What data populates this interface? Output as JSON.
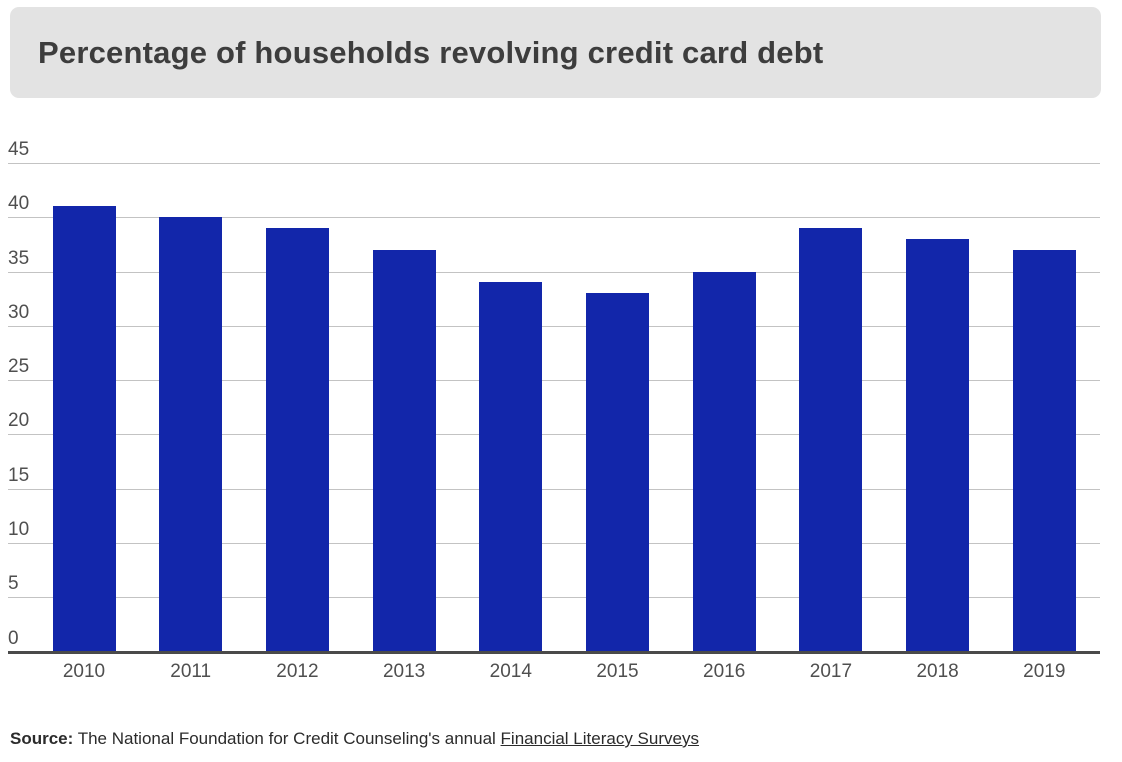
{
  "title": "Percentage of households revolving credit card debt",
  "chart_data": {
    "type": "bar",
    "categories": [
      "2010",
      "2011",
      "2012",
      "2013",
      "2014",
      "2015",
      "2016",
      "2017",
      "2018",
      "2019"
    ],
    "values": [
      41,
      40,
      39,
      37,
      34,
      33,
      35,
      39,
      38,
      37
    ],
    "title": "Percentage of households revolving credit card debt",
    "xlabel": "",
    "ylabel": "",
    "ylim": [
      0,
      45
    ],
    "ytick_step": 5,
    "ytick_labels": [
      "0",
      "5",
      "10",
      "15",
      "20",
      "25",
      "30",
      "35",
      "40",
      "45"
    ],
    "grid": true,
    "legend": "none",
    "bar_color": "#1226aa"
  },
  "source": {
    "label": "Source:",
    "text": " The National Foundation for Credit Counseling's annual ",
    "link_text": "Financial Literacy Surveys"
  },
  "colors": {
    "bar": "#1226aa",
    "title_bg": "#e3e3e3",
    "title_text": "#3d3d3d",
    "gridline": "#c3c3c3",
    "axis": "#4a4a4a",
    "tick_text": "#4f4f4f",
    "source_text": "#2b2b2b"
  }
}
